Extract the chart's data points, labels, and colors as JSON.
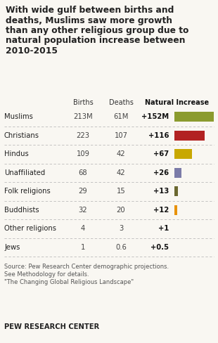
{
  "title_lines": [
    "With wide gulf between births and",
    "deaths, Muslims saw more growth",
    "than any other religious group due to",
    "natural population increase between",
    "2010-2015"
  ],
  "categories": [
    "Muslims",
    "Christians",
    "Hindus",
    "Unaffiliated",
    "Folk religions",
    "Buddhists",
    "Other religions",
    "Jews"
  ],
  "births": [
    "213M",
    "223",
    "109",
    "68",
    "29",
    "32",
    "4",
    "1"
  ],
  "deaths": [
    "61M",
    "107",
    "42",
    "42",
    "15",
    "20",
    "3",
    "0.6"
  ],
  "natural_increase_labels": [
    "+152M",
    "+116",
    "+67",
    "+26",
    "+13",
    "+12",
    "+1",
    "+0.5"
  ],
  "natural_increase_values": [
    152,
    116,
    67,
    26,
    13,
    12,
    1,
    0.5
  ],
  "bar_colors": [
    "#8B9B2E",
    "#B22222",
    "#C8A800",
    "#7B7BA8",
    "#6B6830",
    "#E8920A",
    "#C8C8C8",
    "#7DD4E8"
  ],
  "source_text": "Source: Pew Research Center demographic projections.\nSee Methodology for details.\n\"The Changing Global Religious Landscape\"",
  "footer": "PEW RESEARCH CENTER",
  "background_color": "#f9f7f2",
  "max_val": 152.0
}
